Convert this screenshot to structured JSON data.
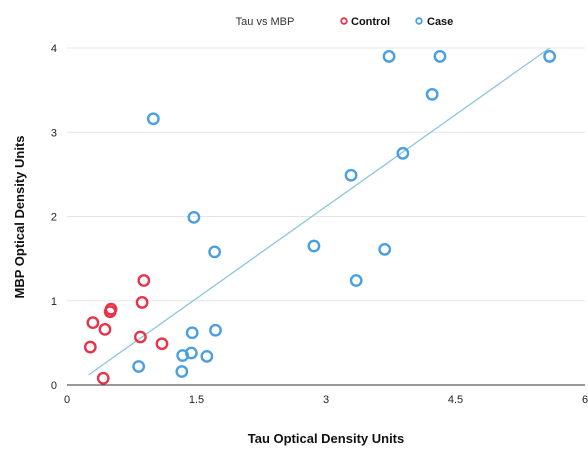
{
  "chart_data": {
    "type": "scatter",
    "title": "Tau vs MBP",
    "xlabel": "Tau Optical Density Units",
    "ylabel": "MBP Optical Density Units",
    "xlim": [
      0,
      6
    ],
    "ylim": [
      0,
      4
    ],
    "x_ticks": [
      "0",
      "1.5",
      "3",
      "4.5",
      "6"
    ],
    "y_ticks": [
      "0",
      "1",
      "2",
      "3",
      "4"
    ],
    "legend_position": "top",
    "grid": "horizontal",
    "series": [
      {
        "name": "Control",
        "color": "#e8334a",
        "points": [
          {
            "x": 0.42,
            "y": 0.08
          },
          {
            "x": 0.27,
            "y": 0.45
          },
          {
            "x": 0.44,
            "y": 0.66
          },
          {
            "x": 0.3,
            "y": 0.74
          },
          {
            "x": 0.5,
            "y": 0.87
          },
          {
            "x": 0.51,
            "y": 0.9
          },
          {
            "x": 0.85,
            "y": 0.57
          },
          {
            "x": 1.1,
            "y": 0.49
          },
          {
            "x": 0.87,
            "y": 0.98
          },
          {
            "x": 0.89,
            "y": 1.24
          }
        ]
      },
      {
        "name": "Case",
        "color": "#4a9fe0",
        "points": [
          {
            "x": 0.83,
            "y": 0.22
          },
          {
            "x": 1.33,
            "y": 0.16
          },
          {
            "x": 1.34,
            "y": 0.35
          },
          {
            "x": 1.44,
            "y": 0.38
          },
          {
            "x": 1.62,
            "y": 0.34
          },
          {
            "x": 1.45,
            "y": 0.62
          },
          {
            "x": 1.72,
            "y": 0.65
          },
          {
            "x": 1.0,
            "y": 3.16
          },
          {
            "x": 1.47,
            "y": 1.99
          },
          {
            "x": 1.71,
            "y": 1.58
          },
          {
            "x": 2.86,
            "y": 1.65
          },
          {
            "x": 3.29,
            "y": 2.49
          },
          {
            "x": 3.35,
            "y": 1.24
          },
          {
            "x": 3.68,
            "y": 1.61
          },
          {
            "x": 3.89,
            "y": 2.75
          },
          {
            "x": 3.73,
            "y": 3.9
          },
          {
            "x": 4.23,
            "y": 3.45
          },
          {
            "x": 4.32,
            "y": 3.9
          },
          {
            "x": 5.59,
            "y": 3.9
          }
        ]
      }
    ],
    "trendline": {
      "color": "#8cc6dd",
      "from": {
        "x": 0.25,
        "y": 0.12
      },
      "to": {
        "x": 5.59,
        "y": 4.0
      }
    }
  }
}
